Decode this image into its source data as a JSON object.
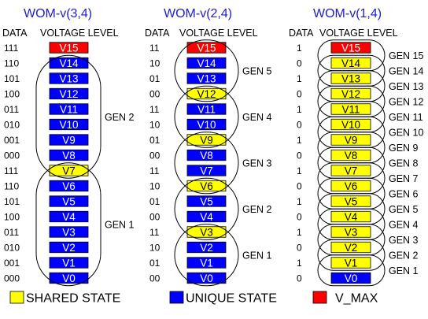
{
  "colors": {
    "unique": "#0000ff",
    "shared": "#ffff00",
    "vmax": "#ff0000",
    "title": "#1c1cd0",
    "text": "#000000"
  },
  "panels": [
    {
      "title": "WOM-v(3,4)",
      "data_header": "DATA",
      "level_header": "VOLTAGE LEVEL",
      "rows": [
        {
          "data": "111",
          "level": "V15",
          "kind": "vmax"
        },
        {
          "data": "110",
          "level": "V14",
          "kind": "unique"
        },
        {
          "data": "101",
          "level": "V13",
          "kind": "unique"
        },
        {
          "data": "100",
          "level": "V12",
          "kind": "unique"
        },
        {
          "data": "011",
          "level": "V11",
          "kind": "unique"
        },
        {
          "data": "010",
          "level": "V10",
          "kind": "unique"
        },
        {
          "data": "001",
          "level": "V9",
          "kind": "unique"
        },
        {
          "data": "000",
          "level": "V8",
          "kind": "unique"
        },
        {
          "data": "111",
          "level": "V7",
          "kind": "shared"
        },
        {
          "data": "110",
          "level": "V6",
          "kind": "unique"
        },
        {
          "data": "101",
          "level": "V5",
          "kind": "unique"
        },
        {
          "data": "100",
          "level": "V4",
          "kind": "unique"
        },
        {
          "data": "011",
          "level": "V3",
          "kind": "unique"
        },
        {
          "data": "010",
          "level": "V2",
          "kind": "unique"
        },
        {
          "data": "001",
          "level": "V1",
          "kind": "unique"
        },
        {
          "data": "000",
          "level": "V0",
          "kind": "unique"
        }
      ],
      "gens": [
        {
          "label": "GEN 2",
          "from": "V14",
          "to": "V7"
        },
        {
          "label": "GEN 1",
          "from": "V7",
          "to": "V0"
        }
      ]
    },
    {
      "title": "WOM-v(2,4)",
      "data_header": "DATA",
      "level_header": "VOLTAGE LEVEL",
      "rows": [
        {
          "data": "11",
          "level": "V15",
          "kind": "vmax"
        },
        {
          "data": "10",
          "level": "V14",
          "kind": "unique"
        },
        {
          "data": "01",
          "level": "V13",
          "kind": "unique"
        },
        {
          "data": "00",
          "level": "V12",
          "kind": "shared"
        },
        {
          "data": "11",
          "level": "V11",
          "kind": "unique"
        },
        {
          "data": "10",
          "level": "V10",
          "kind": "unique"
        },
        {
          "data": "01",
          "level": "V9",
          "kind": "shared"
        },
        {
          "data": "00",
          "level": "V8",
          "kind": "unique"
        },
        {
          "data": "11",
          "level": "V7",
          "kind": "unique"
        },
        {
          "data": "10",
          "level": "V6",
          "kind": "shared"
        },
        {
          "data": "01",
          "level": "V5",
          "kind": "unique"
        },
        {
          "data": "00",
          "level": "V4",
          "kind": "unique"
        },
        {
          "data": "11",
          "level": "V3",
          "kind": "shared"
        },
        {
          "data": "10",
          "level": "V2",
          "kind": "unique"
        },
        {
          "data": "01",
          "level": "V1",
          "kind": "unique"
        },
        {
          "data": "00",
          "level": "V0",
          "kind": "unique"
        }
      ],
      "gens": [
        {
          "label": "GEN 5",
          "from": "V15",
          "to": "V12"
        },
        {
          "label": "GEN 4",
          "from": "V12",
          "to": "V9"
        },
        {
          "label": "GEN 3",
          "from": "V9",
          "to": "V6"
        },
        {
          "label": "GEN 2",
          "from": "V6",
          "to": "V3"
        },
        {
          "label": "GEN 1",
          "from": "V3",
          "to": "V0"
        }
      ]
    },
    {
      "title": "WOM-v(1,4)",
      "data_header": "DATA",
      "level_header": "VOLTAGE LEVEL",
      "rows": [
        {
          "data": "1",
          "level": "V15",
          "kind": "vmax"
        },
        {
          "data": "0",
          "level": "V14",
          "kind": "shared"
        },
        {
          "data": "1",
          "level": "V13",
          "kind": "shared"
        },
        {
          "data": "0",
          "level": "V12",
          "kind": "shared"
        },
        {
          "data": "1",
          "level": "V11",
          "kind": "shared"
        },
        {
          "data": "0",
          "level": "V10",
          "kind": "shared"
        },
        {
          "data": "1",
          "level": "V9",
          "kind": "shared"
        },
        {
          "data": "0",
          "level": "V8",
          "kind": "shared"
        },
        {
          "data": "1",
          "level": "V7",
          "kind": "shared"
        },
        {
          "data": "0",
          "level": "V6",
          "kind": "shared"
        },
        {
          "data": "1",
          "level": "V5",
          "kind": "shared"
        },
        {
          "data": "0",
          "level": "V4",
          "kind": "shared"
        },
        {
          "data": "1",
          "level": "V3",
          "kind": "shared"
        },
        {
          "data": "0",
          "level": "V2",
          "kind": "shared"
        },
        {
          "data": "1",
          "level": "V1",
          "kind": "shared"
        },
        {
          "data": "0",
          "level": "V0",
          "kind": "unique"
        }
      ],
      "gens": [
        {
          "label": "GEN 15",
          "from": "V15",
          "to": "V14"
        },
        {
          "label": "GEN 14",
          "from": "V14",
          "to": "V13"
        },
        {
          "label": "GEN 13",
          "from": "V13",
          "to": "V12"
        },
        {
          "label": "GEN 12",
          "from": "V12",
          "to": "V11"
        },
        {
          "label": "GEN 11",
          "from": "V11",
          "to": "V10"
        },
        {
          "label": "GEN 10",
          "from": "V10",
          "to": "V9"
        },
        {
          "label": "GEN 9",
          "from": "V9",
          "to": "V8"
        },
        {
          "label": "GEN 8",
          "from": "V8",
          "to": "V7"
        },
        {
          "label": "GEN 7",
          "from": "V7",
          "to": "V6"
        },
        {
          "label": "GEN 6",
          "from": "V6",
          "to": "V5"
        },
        {
          "label": "GEN 5",
          "from": "V5",
          "to": "V4"
        },
        {
          "label": "GEN 4",
          "from": "V4",
          "to": "V3"
        },
        {
          "label": "GEN 3",
          "from": "V3",
          "to": "V2"
        },
        {
          "label": "GEN 2",
          "from": "V2",
          "to": "V1"
        },
        {
          "label": "GEN 1",
          "from": "V1",
          "to": "V0"
        }
      ]
    }
  ],
  "legend": [
    {
      "label": "SHARED STATE",
      "kind": "shared"
    },
    {
      "label": "UNIQUE STATE",
      "kind": "unique"
    },
    {
      "label": "V_MAX",
      "kind": "vmax"
    }
  ]
}
